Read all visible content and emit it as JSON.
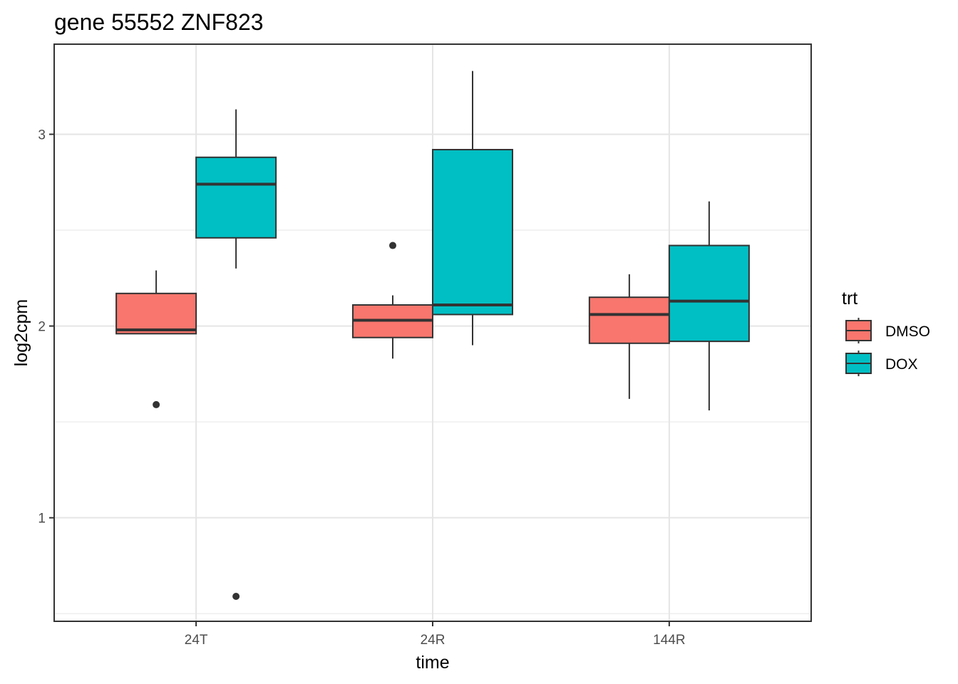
{
  "chart_data": {
    "type": "boxplot",
    "title": "gene 55552 ZNF823",
    "xlabel": "time",
    "ylabel": "log2cpm",
    "categories": [
      "24T",
      "24R",
      "144R"
    ],
    "y_ticks": [
      1,
      2,
      3
    ],
    "ylim": [
      0.46,
      3.47
    ],
    "grid": true,
    "legend": {
      "title": "trt",
      "position": "right",
      "entries": [
        {
          "label": "DMSO",
          "color": "#F8766D"
        },
        {
          "label": "DOX",
          "color": "#00BFC4"
        }
      ]
    },
    "series": [
      {
        "name": "DMSO",
        "color": "#F8766D",
        "boxes": [
          {
            "category": "24T",
            "whisker_low": 1.96,
            "q1": 1.96,
            "median": 1.98,
            "q3": 2.17,
            "whisker_high": 2.29,
            "outliers": [
              1.59
            ]
          },
          {
            "category": "24R",
            "whisker_low": 1.83,
            "q1": 1.94,
            "median": 2.03,
            "q3": 2.11,
            "whisker_high": 2.16,
            "outliers": [
              2.42
            ]
          },
          {
            "category": "144R",
            "whisker_low": 1.62,
            "q1": 1.91,
            "median": 2.06,
            "q3": 2.15,
            "whisker_high": 2.27,
            "outliers": []
          }
        ]
      },
      {
        "name": "DOX",
        "color": "#00BFC4",
        "boxes": [
          {
            "category": "24T",
            "whisker_low": 2.3,
            "q1": 2.46,
            "median": 2.74,
            "q3": 2.88,
            "whisker_high": 3.13,
            "outliers": [
              0.59
            ]
          },
          {
            "category": "24R",
            "whisker_low": 1.9,
            "q1": 2.06,
            "median": 2.11,
            "q3": 2.92,
            "whisker_high": 3.33,
            "outliers": []
          },
          {
            "category": "144R",
            "whisker_low": 1.56,
            "q1": 1.92,
            "median": 2.13,
            "q3": 2.42,
            "whisker_high": 2.65,
            "outliers": []
          }
        ]
      }
    ]
  }
}
